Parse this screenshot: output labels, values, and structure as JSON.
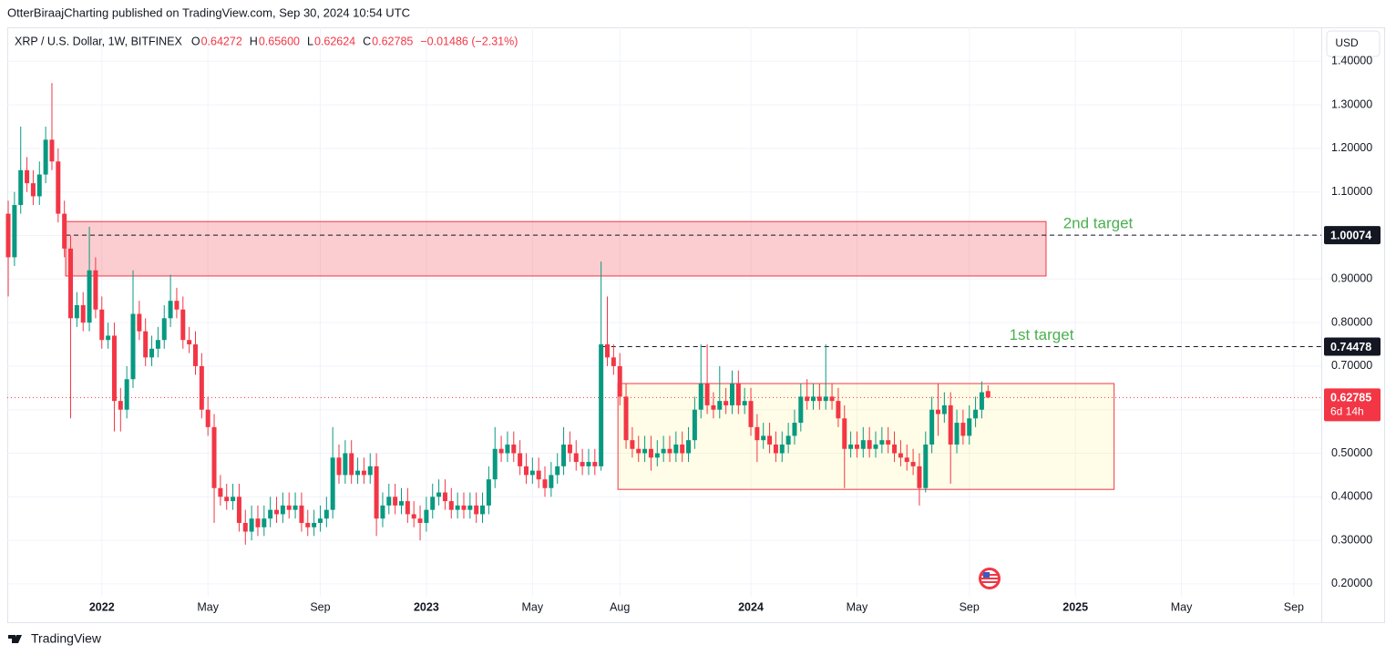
{
  "header": {
    "publisher": "OtterBiraajCharting published on TradingView.com, Sep 30, 2024 10:54 UTC"
  },
  "footer": {
    "brand": "TradingView"
  },
  "chart_data": {
    "type": "candlestick",
    "title": "XRP / U.S. Dollar, 1W, BITFINEX",
    "ohlc_legend": [
      {
        "key": "O",
        "value": "0.64272"
      },
      {
        "key": "H",
        "value": "0.65600"
      },
      {
        "key": "L",
        "value": "0.62624"
      },
      {
        "key": "C",
        "value": "0.62785"
      }
    ],
    "change": "−0.01486 (−2.31%)",
    "currency": "USD",
    "countdown": "6d 14h",
    "up_color": "#089981",
    "down_color": "#f23645",
    "grid": true,
    "open": [
      1.05,
      0.95,
      1.07,
      1.15,
      1.12,
      1.09,
      1.14,
      1.22,
      1.17,
      1.05,
      0.97,
      0.81,
      0.84,
      0.8,
      0.92,
      0.83,
      0.76,
      0.77,
      0.62,
      0.6,
      0.67,
      0.82,
      0.78,
      0.72,
      0.74,
      0.76,
      0.81,
      0.85,
      0.83,
      0.76,
      0.75,
      0.7,
      0.6,
      0.56,
      0.42,
      0.4,
      0.39,
      0.4,
      0.34,
      0.32,
      0.35,
      0.33,
      0.35,
      0.37,
      0.36,
      0.38,
      0.37,
      0.38,
      0.34,
      0.33,
      0.34,
      0.35,
      0.37,
      0.49,
      0.45,
      0.5,
      0.45,
      0.46,
      0.45,
      0.47,
      0.35,
      0.38,
      0.4,
      0.38,
      0.39,
      0.36,
      0.35,
      0.34,
      0.37,
      0.4,
      0.41,
      0.39,
      0.37,
      0.38,
      0.37,
      0.38,
      0.36,
      0.38,
      0.44,
      0.51,
      0.5,
      0.52,
      0.5,
      0.47,
      0.45,
      0.46,
      0.44,
      0.42,
      0.45,
      0.47,
      0.52,
      0.5,
      0.48,
      0.47,
      0.48,
      0.47,
      0.75,
      0.72,
      0.7,
      0.63,
      0.53,
      0.51,
      0.5,
      0.51,
      0.49,
      0.5,
      0.51,
      0.5,
      0.52,
      0.5,
      0.53,
      0.6,
      0.66,
      0.61,
      0.6,
      0.62,
      0.61,
      0.66,
      0.61,
      0.62,
      0.56,
      0.53,
      0.54,
      0.52,
      0.5,
      0.52,
      0.54,
      0.57,
      0.63,
      0.62,
      0.63,
      0.62,
      0.63,
      0.62,
      0.58,
      0.51,
      0.52,
      0.51,
      0.53,
      0.51,
      0.52,
      0.53,
      0.52,
      0.5,
      0.49,
      0.48,
      0.47,
      0.42,
      0.52,
      0.6,
      0.59,
      0.61,
      0.52,
      0.57,
      0.54,
      0.58,
      0.6,
      0.64272
    ],
    "high": [
      1.08,
      1.1,
      1.25,
      1.18,
      1.15,
      1.17,
      1.25,
      1.35,
      1.2,
      1.08,
      1.0,
      0.87,
      0.87,
      1.02,
      0.95,
      0.86,
      0.8,
      0.8,
      0.65,
      0.7,
      0.92,
      0.85,
      0.81,
      0.77,
      0.79,
      0.84,
      0.91,
      0.88,
      0.86,
      0.79,
      0.78,
      0.73,
      0.63,
      0.59,
      0.45,
      0.43,
      0.43,
      0.43,
      0.37,
      0.38,
      0.38,
      0.38,
      0.4,
      0.4,
      0.41,
      0.41,
      0.41,
      0.41,
      0.37,
      0.37,
      0.38,
      0.4,
      0.56,
      0.52,
      0.53,
      0.53,
      0.49,
      0.49,
      0.5,
      0.5,
      0.41,
      0.43,
      0.43,
      0.42,
      0.42,
      0.39,
      0.38,
      0.4,
      0.43,
      0.44,
      0.44,
      0.42,
      0.41,
      0.41,
      0.41,
      0.41,
      0.41,
      0.47,
      0.56,
      0.54,
      0.55,
      0.55,
      0.53,
      0.5,
      0.49,
      0.49,
      0.47,
      0.48,
      0.5,
      0.56,
      0.55,
      0.53,
      0.51,
      0.51,
      0.51,
      0.94,
      0.86,
      0.75,
      0.73,
      0.66,
      0.56,
      0.54,
      0.54,
      0.54,
      0.53,
      0.54,
      0.54,
      0.55,
      0.55,
      0.56,
      0.63,
      0.75,
      0.75,
      0.64,
      0.7,
      0.65,
      0.69,
      0.69,
      0.65,
      0.65,
      0.59,
      0.57,
      0.57,
      0.55,
      0.55,
      0.57,
      0.6,
      0.66,
      0.67,
      0.66,
      0.66,
      0.75,
      0.66,
      0.65,
      0.61,
      0.55,
      0.55,
      0.56,
      0.56,
      0.55,
      0.56,
      0.56,
      0.55,
      0.53,
      0.52,
      0.51,
      0.5,
      0.55,
      0.63,
      0.66,
      0.64,
      0.64,
      0.6,
      0.6,
      0.61,
      0.63,
      0.665,
      0.656
    ],
    "low": [
      0.86,
      0.93,
      1.05,
      1.1,
      1.07,
      1.07,
      1.12,
      1.15,
      1.03,
      0.95,
      0.58,
      0.79,
      0.78,
      0.78,
      0.81,
      0.74,
      0.74,
      0.55,
      0.55,
      0.58,
      0.65,
      0.76,
      0.7,
      0.7,
      0.72,
      0.74,
      0.79,
      0.81,
      0.74,
      0.73,
      0.68,
      0.58,
      0.54,
      0.34,
      0.38,
      0.37,
      0.37,
      0.32,
      0.29,
      0.3,
      0.31,
      0.31,
      0.33,
      0.34,
      0.34,
      0.35,
      0.35,
      0.32,
      0.31,
      0.31,
      0.32,
      0.33,
      0.35,
      0.43,
      0.43,
      0.43,
      0.43,
      0.43,
      0.43,
      0.31,
      0.33,
      0.36,
      0.36,
      0.36,
      0.34,
      0.33,
      0.3,
      0.32,
      0.35,
      0.38,
      0.37,
      0.35,
      0.35,
      0.35,
      0.35,
      0.34,
      0.34,
      0.36,
      0.42,
      0.48,
      0.48,
      0.48,
      0.45,
      0.43,
      0.43,
      0.42,
      0.4,
      0.4,
      0.43,
      0.45,
      0.48,
      0.46,
      0.45,
      0.45,
      0.45,
      0.46,
      0.7,
      0.68,
      0.61,
      0.51,
      0.49,
      0.48,
      0.48,
      0.46,
      0.47,
      0.48,
      0.48,
      0.48,
      0.48,
      0.48,
      0.51,
      0.58,
      0.59,
      0.58,
      0.58,
      0.59,
      0.59,
      0.59,
      0.59,
      0.54,
      0.48,
      0.51,
      0.5,
      0.48,
      0.48,
      0.5,
      0.52,
      0.55,
      0.6,
      0.6,
      0.6,
      0.6,
      0.6,
      0.56,
      0.42,
      0.49,
      0.49,
      0.49,
      0.49,
      0.49,
      0.5,
      0.5,
      0.48,
      0.47,
      0.46,
      0.45,
      0.38,
      0.41,
      0.5,
      0.54,
      0.57,
      0.43,
      0.5,
      0.52,
      0.52,
      0.56,
      0.58,
      0.62624
    ],
    "close": [
      0.95,
      1.07,
      1.15,
      1.12,
      1.09,
      1.14,
      1.22,
      1.17,
      1.05,
      0.97,
      0.81,
      0.84,
      0.8,
      0.92,
      0.83,
      0.76,
      0.77,
      0.62,
      0.6,
      0.67,
      0.82,
      0.78,
      0.72,
      0.74,
      0.76,
      0.81,
      0.85,
      0.83,
      0.76,
      0.75,
      0.7,
      0.6,
      0.56,
      0.42,
      0.4,
      0.39,
      0.4,
      0.34,
      0.32,
      0.35,
      0.33,
      0.35,
      0.37,
      0.36,
      0.38,
      0.37,
      0.38,
      0.34,
      0.33,
      0.34,
      0.35,
      0.37,
      0.49,
      0.45,
      0.5,
      0.45,
      0.46,
      0.45,
      0.47,
      0.35,
      0.38,
      0.4,
      0.38,
      0.39,
      0.36,
      0.35,
      0.34,
      0.37,
      0.4,
      0.41,
      0.39,
      0.37,
      0.38,
      0.37,
      0.38,
      0.36,
      0.38,
      0.44,
      0.51,
      0.5,
      0.52,
      0.5,
      0.47,
      0.45,
      0.46,
      0.44,
      0.42,
      0.45,
      0.47,
      0.52,
      0.5,
      0.48,
      0.47,
      0.48,
      0.47,
      0.75,
      0.72,
      0.7,
      0.63,
      0.53,
      0.51,
      0.5,
      0.51,
      0.49,
      0.5,
      0.51,
      0.5,
      0.52,
      0.5,
      0.53,
      0.6,
      0.66,
      0.61,
      0.6,
      0.62,
      0.61,
      0.66,
      0.61,
      0.62,
      0.56,
      0.53,
      0.54,
      0.52,
      0.5,
      0.52,
      0.54,
      0.57,
      0.63,
      0.62,
      0.63,
      0.62,
      0.63,
      0.62,
      0.58,
      0.51,
      0.52,
      0.51,
      0.53,
      0.51,
      0.52,
      0.53,
      0.52,
      0.5,
      0.49,
      0.48,
      0.47,
      0.42,
      0.52,
      0.6,
      0.59,
      0.61,
      0.52,
      0.57,
      0.54,
      0.58,
      0.6,
      0.64,
      0.62785
    ],
    "xlim": [
      -0.15,
      210.4
    ],
    "xticks": [
      {
        "value": 15,
        "label": "2022"
      },
      {
        "value": 32,
        "label": "May"
      },
      {
        "value": 50,
        "label": "Sep"
      },
      {
        "value": 67,
        "label": "2023"
      },
      {
        "value": 84,
        "label": "May"
      },
      {
        "value": 98,
        "label": "Aug"
      },
      {
        "value": 119,
        "label": "2024"
      },
      {
        "value": 136,
        "label": "May"
      },
      {
        "value": 154,
        "label": "Sep"
      },
      {
        "value": 171,
        "label": "2025"
      },
      {
        "value": 188,
        "label": "May"
      },
      {
        "value": 206,
        "label": "Sep"
      }
    ],
    "ylim": [
      0.112,
      1.478
    ],
    "yticks": [
      {
        "value": 0.2,
        "label": "0.20000"
      },
      {
        "value": 0.3,
        "label": "0.30000"
      },
      {
        "value": 0.4,
        "label": "0.40000"
      },
      {
        "value": 0.5,
        "label": "0.50000"
      },
      {
        "value": 0.6,
        "label": "0.60000"
      },
      {
        "value": 0.7,
        "label": "0.70000"
      },
      {
        "value": 0.8,
        "label": "0.80000"
      },
      {
        "value": 0.9,
        "label": "0.90000"
      },
      {
        "value": 1.0,
        "label": "1.00000"
      },
      {
        "value": 1.1,
        "label": "1.10000"
      },
      {
        "value": 1.2,
        "label": "1.20000"
      },
      {
        "value": 1.3,
        "label": "1.30000"
      },
      {
        "value": 1.4,
        "label": "1.40000"
      }
    ],
    "zones": [
      {
        "x": [
          9.2,
          166.3
        ],
        "y": [
          0.907,
          1.032
        ],
        "color": "#f23645"
      },
      {
        "x": [
          97.7,
          177.2
        ],
        "y": [
          0.417,
          0.66
        ],
        "color": "#f23645"
      }
    ],
    "levels": [
      {
        "label": "2nd target",
        "value": 1.00074,
        "x_start": 9.2
      },
      {
        "label": "1st target",
        "value": 0.74478,
        "x_start": 95.3
      }
    ],
    "level_label_color": "#4caf50"
  }
}
